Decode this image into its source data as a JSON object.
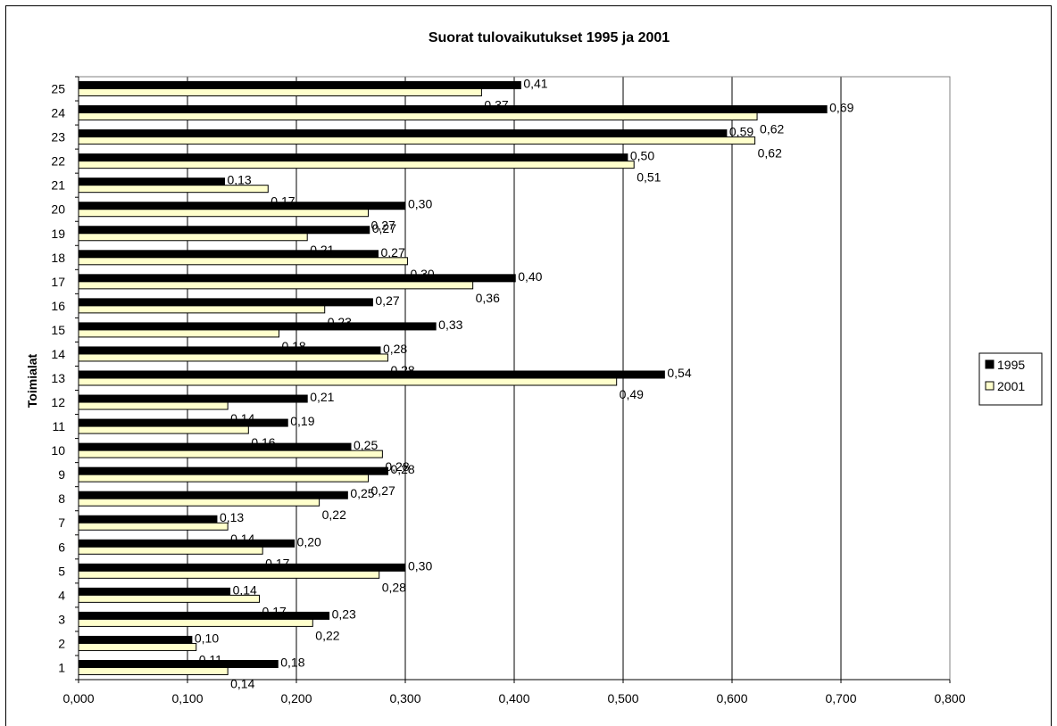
{
  "chart_data": {
    "type": "bar",
    "orientation": "horizontal",
    "title": "Suorat tulovaikutukset 1995 ja 2001",
    "ylabel": "Toimialat",
    "xlabel": "",
    "categories": [
      "1",
      "2",
      "3",
      "4",
      "5",
      "6",
      "7",
      "8",
      "9",
      "10",
      "11",
      "12",
      "13",
      "14",
      "15",
      "16",
      "17",
      "18",
      "19",
      "20",
      "21",
      "22",
      "23",
      "24",
      "25"
    ],
    "series": [
      {
        "name": "1995",
        "color": "#000000",
        "values": [
          0.183,
          0.104,
          0.23,
          0.139,
          0.3,
          0.198,
          0.127,
          0.247,
          0.284,
          0.25,
          0.192,
          0.21,
          0.538,
          0.277,
          0.328,
          0.27,
          0.401,
          0.275,
          0.267,
          0.3,
          0.134,
          0.504,
          0.595,
          0.687,
          0.406
        ],
        "labels": [
          "0,18",
          "0,10",
          "0,23",
          "0,14",
          "0,30",
          "0,20",
          "0,13",
          "0,25",
          "0,28",
          "0,25",
          "0,19",
          "0,21",
          "0,54",
          "0,28",
          "0,33",
          "0,27",
          "0,40",
          "0,27",
          "0,27",
          "0,30",
          "0,13",
          "0,50",
          "0,59",
          "0,69",
          "0,41"
        ]
      },
      {
        "name": "2001",
        "color": "#ffffcc",
        "values": [
          0.137,
          0.108,
          0.215,
          0.166,
          0.276,
          0.169,
          0.137,
          0.221,
          0.266,
          0.279,
          0.156,
          0.137,
          0.494,
          0.284,
          0.184,
          0.226,
          0.362,
          0.302,
          0.21,
          0.266,
          0.174,
          0.51,
          0.621,
          0.623,
          0.37
        ],
        "labels": [
          "0,14",
          "0,11",
          "0,22",
          "0,17",
          "0,28",
          "0,17",
          "0,14",
          "0,22",
          "0,27",
          "0,28",
          "0,16",
          "0,14",
          "0,49",
          "0,28",
          "0,18",
          "0,23",
          "0,36",
          "0,30",
          "0,21",
          "0,27",
          "0,17",
          "0,51",
          "0,62",
          "0,62",
          "0,37"
        ]
      }
    ],
    "xlim": [
      0,
      0.8
    ],
    "xticks": [
      "0,000",
      "0,100",
      "0,200",
      "0,300",
      "0,400",
      "0,500",
      "0,600",
      "0,700",
      "0,800"
    ],
    "grid": "vertical",
    "legend": "right"
  }
}
